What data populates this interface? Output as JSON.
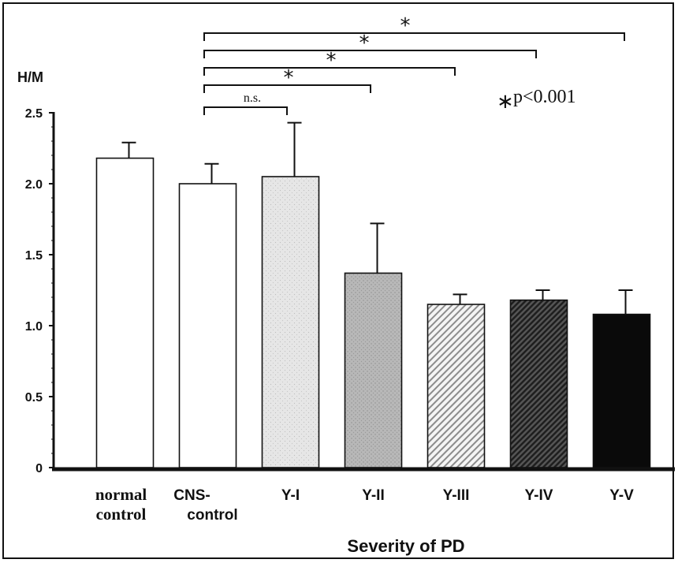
{
  "chart_data": {
    "type": "bar",
    "categories": [
      [
        "normal",
        "control"
      ],
      [
        "CNS-",
        "control"
      ],
      [
        "Y-I"
      ],
      [
        "Y-II"
      ],
      [
        "Y-III"
      ],
      [
        "Y-IV"
      ],
      [
        "Y-V"
      ]
    ],
    "values": [
      2.18,
      2.0,
      2.05,
      1.37,
      1.15,
      1.18,
      1.08
    ],
    "errors": [
      0.11,
      0.14,
      0.38,
      0.35,
      0.07,
      0.07,
      0.17
    ],
    "fills": [
      "white",
      "white",
      "light-speckle",
      "gray-speckle",
      "light-diagonal-hatch",
      "dark-diagonal-hatch",
      "black"
    ],
    "ylabel": "H/M",
    "xlabel": "Severity of PD",
    "ylim": [
      0,
      2.5
    ],
    "yticks": [
      "0",
      "0.5",
      "1.0",
      "1.5",
      "2.0",
      "2.5"
    ],
    "grid": false,
    "comparisons": [
      {
        "from": "CNS-control",
        "to": "Y-I",
        "label": "n.s."
      },
      {
        "from": "CNS-control",
        "to": "Y-II",
        "label": "*"
      },
      {
        "from": "CNS-control",
        "to": "Y-III",
        "label": "*"
      },
      {
        "from": "CNS-control",
        "to": "Y-IV",
        "label": "*"
      },
      {
        "from": "CNS-control",
        "to": "Y-V",
        "label": "*"
      }
    ],
    "annotation": {
      "star": "∗",
      "text": "p<0.001"
    }
  }
}
